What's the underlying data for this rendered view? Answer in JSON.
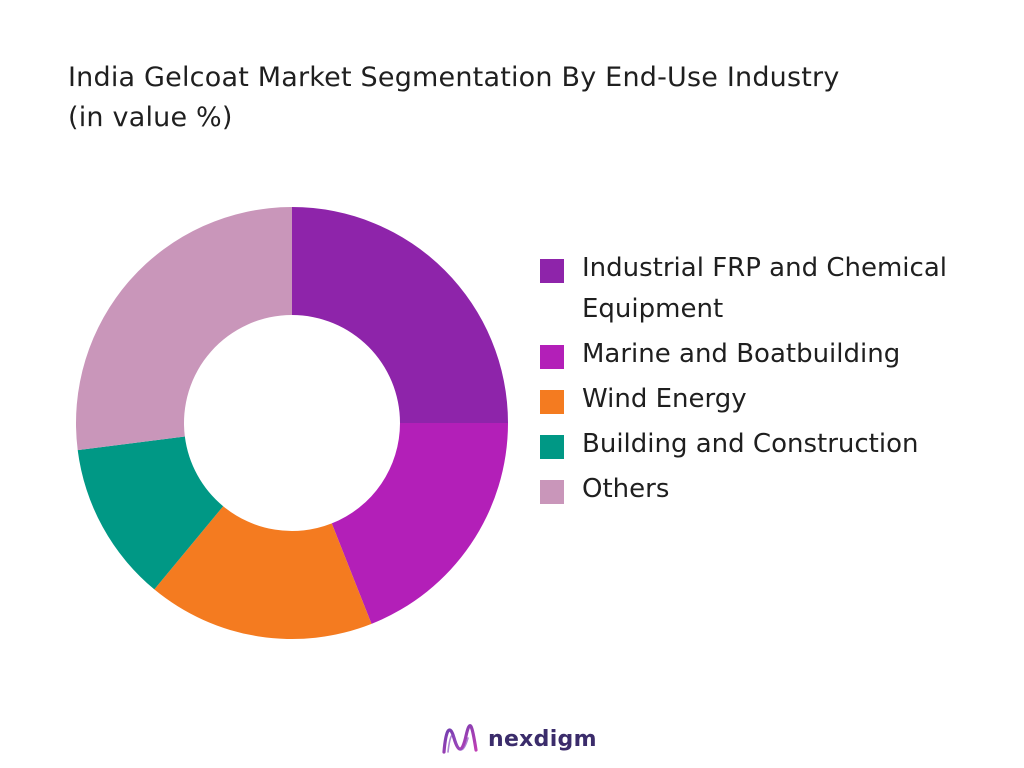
{
  "chart_data": {
    "type": "pie",
    "donut": true,
    "title": "India Gelcoat Market Segmentation By End-Use Industry (in value %)",
    "categories": [
      "Industrial FRP and Chemical Equipment",
      "Marine and Boatbuilding",
      "Wind Energy",
      "Building and Construction",
      "Others"
    ],
    "values": [
      25,
      19,
      17,
      12,
      27
    ],
    "colors": [
      "#8e24aa",
      "#b31fb8",
      "#f47b20",
      "#009885",
      "#c996ba"
    ],
    "legend_position": "right"
  },
  "brand": {
    "name": "nexdigm",
    "logo_icon": "nexdigm-wave-icon",
    "color": "#3b2c6b"
  }
}
